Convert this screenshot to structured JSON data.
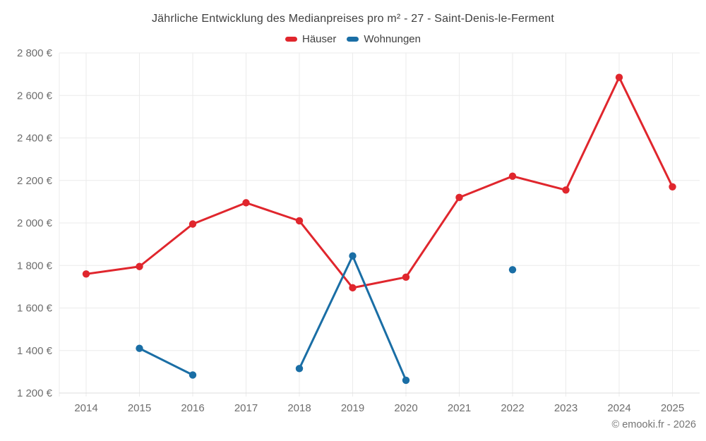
{
  "page": {
    "footer": "© emooki.fr - 2026"
  },
  "chart_data": {
    "type": "line",
    "title": "Jährliche Entwicklung des Medianpreises pro m² - 27 - Saint-Denis-le-Ferment",
    "legend_position": "top",
    "grid": true,
    "categories": [
      "2014",
      "2015",
      "2016",
      "2017",
      "2018",
      "2019",
      "2020",
      "2021",
      "2022",
      "2023",
      "2024",
      "2025"
    ],
    "ylim": [
      1200,
      2800
    ],
    "y_ticks": [
      {
        "value": 2800,
        "label": "2 800 €"
      },
      {
        "value": 2600,
        "label": "2 600 €"
      },
      {
        "value": 2400,
        "label": "2 400 €"
      },
      {
        "value": 2200,
        "label": "2 200 €"
      },
      {
        "value": 2000,
        "label": "2 000 €"
      },
      {
        "value": 1800,
        "label": "1 800 €"
      },
      {
        "value": 1600,
        "label": "1 600 €"
      },
      {
        "value": 1400,
        "label": "1 400 €"
      },
      {
        "value": 1200,
        "label": "1 200 €"
      }
    ],
    "series": [
      {
        "name": "Häuser",
        "color": "#e0262d",
        "values": [
          1760,
          1795,
          1995,
          2095,
          2010,
          1695,
          1745,
          2120,
          2220,
          2155,
          2685,
          2170
        ]
      },
      {
        "name": "Wohnungen",
        "color": "#1a6ea5",
        "values": [
          null,
          1410,
          1285,
          null,
          1315,
          1845,
          1260,
          null,
          1780,
          null,
          null,
          null
        ]
      }
    ],
    "colors": {
      "grid": "#ebebeb",
      "axis": "#dcdcdc",
      "tick_label": "#6e6e6e",
      "title_text": "#3f3f3f"
    }
  }
}
